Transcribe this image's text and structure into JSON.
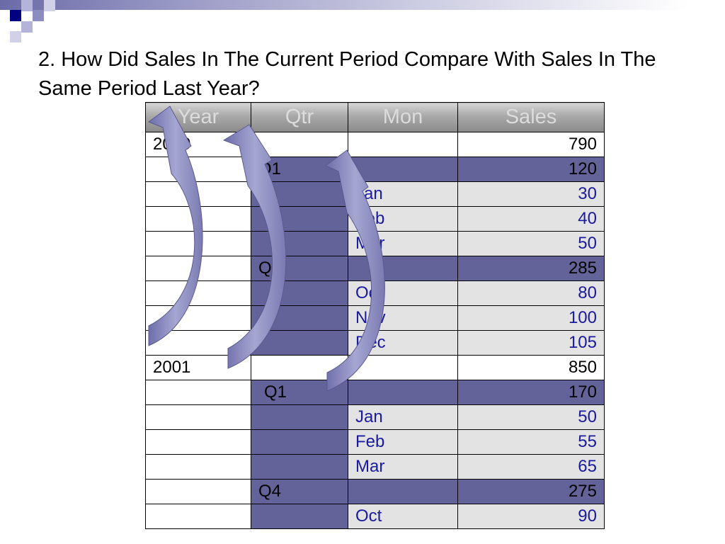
{
  "slide": {
    "title": "2. How Did Sales In The Current Period Compare With Sales In The Same Period Last Year?"
  },
  "table": {
    "headers": [
      "Year",
      "Qtr",
      "Mon",
      "Sales"
    ],
    "rows": [
      {
        "year": "2000",
        "qtr": "",
        "mon": "",
        "sales": "790"
      },
      {
        "year": "",
        "qtr": "Q1",
        "mon": "",
        "sales": "120"
      },
      {
        "year": "",
        "qtr": "",
        "mon": "Jan",
        "sales": "30"
      },
      {
        "year": "",
        "qtr": "",
        "mon": "Feb",
        "sales": "40"
      },
      {
        "year": "",
        "qtr": "",
        "mon": "Mar",
        "sales": "50"
      },
      {
        "year": "",
        "qtr": "Q4",
        "mon": "",
        "sales": "285"
      },
      {
        "year": "",
        "qtr": "",
        "mon": "Oct",
        "sales": "80"
      },
      {
        "year": "",
        "qtr": "",
        "mon": "Nov",
        "sales": "100"
      },
      {
        "year": "",
        "qtr": "",
        "mon": "Dec",
        "sales": "105"
      },
      {
        "year": "2001",
        "qtr": "",
        "mon": "",
        "sales": "850"
      },
      {
        "year": "",
        "qtr": "Q1",
        "mon": "",
        "sales": "170"
      },
      {
        "year": "",
        "qtr": "",
        "mon": "Jan",
        "sales": "50"
      },
      {
        "year": "",
        "qtr": "",
        "mon": "Feb",
        "sales": "55"
      },
      {
        "year": "",
        "qtr": "",
        "mon": "Mar",
        "sales": "65"
      },
      {
        "year": "",
        "qtr": "Q4",
        "mon": "",
        "sales": "275"
      },
      {
        "year": "",
        "qtr": "",
        "mon": "Oct",
        "sales": "90"
      }
    ]
  },
  "colors": {
    "header_band": "#6b6ba8",
    "qtr_fill": "#63639a",
    "month_fill": "#e3e3e3",
    "month_text": "#1a1aa0",
    "arrow_fill": "#8a8ac0"
  }
}
